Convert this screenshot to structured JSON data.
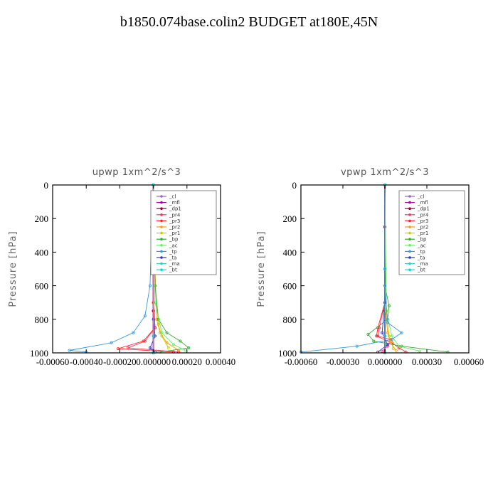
{
  "title": "b1850.074base.colin2  BUDGET at180E,45N",
  "chart_data": [
    {
      "type": "line",
      "title": "upwp   1xm^2/s^3",
      "ylabel": "Pressure [hPa]",
      "xlim": [
        -0.0006,
        0.0004
      ],
      "ylim": [
        1000,
        0
      ],
      "xticks": [
        -0.0006,
        -0.0004,
        -0.0002,
        0.0,
        0.0002,
        0.0004
      ],
      "xtick_labels": [
        "-0.00060",
        "-0.00040",
        "-0.00020",
        "0.000000",
        "0.00020",
        "0.00040"
      ],
      "yticks": [
        0,
        200,
        400,
        600,
        800,
        1000
      ],
      "ytick_labels": [
        "0",
        "200",
        "400",
        "600",
        "800",
        "1000"
      ],
      "legend_position": "top-right",
      "series": [
        {
          "name": "_cl",
          "color": "#9966cc",
          "x": [
            0,
            0,
            0,
            0,
            0
          ],
          "y": [
            0,
            250,
            500,
            750,
            1000
          ]
        },
        {
          "name": "_mfl",
          "color": "#aa00aa",
          "x": [
            0,
            0,
            0,
            0,
            0
          ],
          "y": [
            0,
            250,
            500,
            750,
            1000
          ]
        },
        {
          "name": "_dp1",
          "color": "#990033",
          "x": [
            0,
            0,
            0,
            0,
            0
          ],
          "y": [
            0,
            250,
            500,
            750,
            1000
          ]
        },
        {
          "name": "_pr4",
          "color": "#ff3366",
          "x": [
            0,
            0,
            0,
            1e-05,
            -5e-05,
            -0.00015,
            0.00015
          ],
          "y": [
            0,
            400,
            700,
            850,
            930,
            970,
            995
          ]
        },
        {
          "name": "_pr3",
          "color": "#ff2222",
          "x": [
            0,
            0,
            0,
            1e-05,
            -6e-05,
            -0.00021,
            0.00012
          ],
          "y": [
            0,
            400,
            700,
            850,
            930,
            975,
            995
          ]
        },
        {
          "name": "_pr2",
          "color": "#ff9900",
          "x": [
            0,
            1e-05,
            2e-05,
            4e-05,
            8e-05,
            0.00015
          ],
          "y": [
            0,
            500,
            800,
            880,
            940,
            985
          ]
        },
        {
          "name": "_pr1",
          "color": "#cccc00",
          "x": [
            0,
            1e-05,
            3e-05,
            5e-05,
            9e-05
          ],
          "y": [
            0,
            600,
            830,
            900,
            970
          ]
        },
        {
          "name": "_bp",
          "color": "#33aa33",
          "x": [
            0,
            1e-05,
            3e-05,
            8e-05,
            0.00016,
            0.00021,
            4e-05
          ],
          "y": [
            0,
            600,
            800,
            880,
            930,
            970,
            995
          ]
        },
        {
          "name": "_ac",
          "color": "#66ee66",
          "x": [
            0,
            1e-05,
            5e-05,
            0.00012,
            0.00019
          ],
          "y": [
            0,
            700,
            880,
            950,
            985
          ]
        },
        {
          "name": "_tp",
          "color": "#3399dd",
          "x": [
            0,
            -1e-05,
            -2e-05,
            -5e-05,
            -0.00012,
            -0.00025,
            -0.0005,
            -0.0004
          ],
          "y": [
            0,
            250,
            600,
            780,
            880,
            940,
            985,
            995
          ]
        },
        {
          "name": "_ta",
          "color": "#3333cc",
          "x": [
            0,
            0,
            0,
            1e-05,
            -2e-05,
            1e-05
          ],
          "y": [
            0,
            400,
            800,
            900,
            970,
            995
          ]
        },
        {
          "name": "_ma",
          "color": "#33cccc",
          "x": [
            0,
            0,
            0,
            0
          ],
          "y": [
            0,
            500,
            900,
            1000
          ]
        },
        {
          "name": "_bt",
          "color": "#00dddd",
          "x": [
            0,
            0,
            0,
            0
          ],
          "y": [
            0,
            500,
            900,
            1000
          ]
        }
      ]
    },
    {
      "type": "line",
      "title": "vpwp   1xm^2/s^3",
      "ylabel": "Pressure [hPa]",
      "xlim": [
        -0.0006,
        0.0006
      ],
      "ylim": [
        1000,
        0
      ],
      "xticks": [
        -0.0006,
        -0.0003,
        0.0,
        0.0003,
        0.0006
      ],
      "xtick_labels": [
        "-0.00060",
        "-0.00030",
        "0.000000",
        "0.00030",
        "0.00060"
      ],
      "yticks": [
        0,
        200,
        400,
        600,
        800,
        1000
      ],
      "ytick_labels": [
        "0",
        "200",
        "400",
        "600",
        "800",
        "1000"
      ],
      "legend_position": "top-right",
      "series": [
        {
          "name": "_cl",
          "color": "#9966cc",
          "x": [
            0,
            0,
            0,
            0,
            0
          ],
          "y": [
            0,
            250,
            500,
            750,
            1000
          ]
        },
        {
          "name": "_mfl",
          "color": "#aa00aa",
          "x": [
            0,
            0,
            0,
            0,
            0
          ],
          "y": [
            0,
            250,
            500,
            750,
            1000
          ]
        },
        {
          "name": "_dp1",
          "color": "#990033",
          "x": [
            0,
            0,
            0,
            0,
            0
          ],
          "y": [
            0,
            250,
            500,
            750,
            1000
          ]
        },
        {
          "name": "_pr4",
          "color": "#ff3366",
          "x": [
            0,
            0,
            -4e-05,
            -5e-05,
            4e-05,
            2e-05,
            -2e-05
          ],
          "y": [
            0,
            700,
            850,
            900,
            920,
            960,
            990
          ]
        },
        {
          "name": "_pr3",
          "color": "#ff2222",
          "x": [
            0,
            0,
            -5e-05,
            -6e-05,
            5e-05,
            0.0001,
            0.00015
          ],
          "y": [
            0,
            700,
            850,
            900,
            940,
            970,
            995
          ]
        },
        {
          "name": "_pr2",
          "color": "#ff9900",
          "x": [
            0,
            0,
            2e-05,
            4e-05,
            8e-05
          ],
          "y": [
            0,
            700,
            880,
            940,
            985
          ]
        },
        {
          "name": "_pr1",
          "color": "#cccc00",
          "x": [
            0,
            1e-05,
            3e-05,
            6e-05
          ],
          "y": [
            0,
            750,
            900,
            975
          ]
        },
        {
          "name": "_bp",
          "color": "#33aa33",
          "x": [
            0,
            0,
            3e-05,
            2e-05,
            -0.00012,
            -8e-05,
            0.00012,
            0.00045
          ],
          "y": [
            0,
            600,
            720,
            800,
            890,
            930,
            960,
            995
          ]
        },
        {
          "name": "_ac",
          "color": "#66ee66",
          "x": [
            0,
            1e-05,
            5e-05,
            0.0001,
            0.00025
          ],
          "y": [
            0,
            750,
            900,
            960,
            990
          ]
        },
        {
          "name": "_tp",
          "color": "#3399dd",
          "x": [
            0,
            0,
            2e-05,
            0.00012,
            5e-05,
            -0.0002,
            -0.0006
          ],
          "y": [
            0,
            600,
            820,
            880,
            920,
            960,
            995
          ]
        },
        {
          "name": "_ta",
          "color": "#3333cc",
          "x": [
            0,
            0,
            -2e-05,
            2e-05,
            -5e-05
          ],
          "y": [
            0,
            700,
            880,
            950,
            995
          ]
        },
        {
          "name": "_ma",
          "color": "#33cccc",
          "x": [
            0,
            0,
            0,
            0
          ],
          "y": [
            0,
            500,
            900,
            1000
          ]
        },
        {
          "name": "_bt",
          "color": "#00dddd",
          "x": [
            0,
            0,
            0,
            0
          ],
          "y": [
            0,
            500,
            900,
            1000
          ]
        }
      ]
    }
  ]
}
